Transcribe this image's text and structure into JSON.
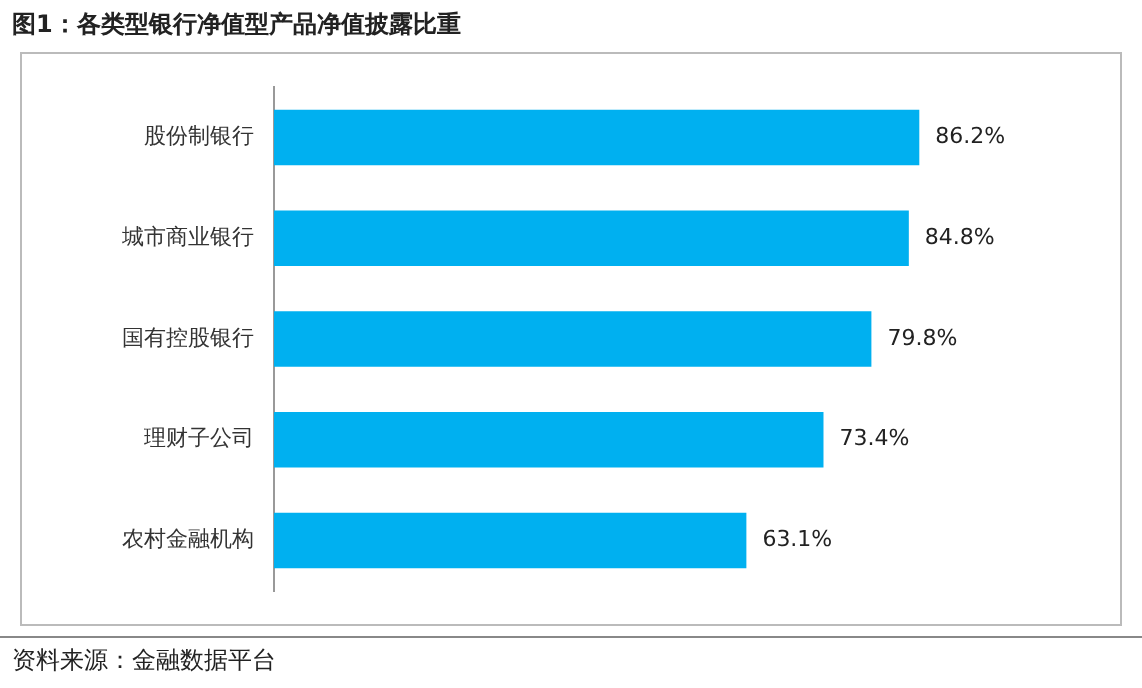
{
  "chart_data": {
    "type": "bar",
    "title": "图1：各类型银行净值型产品净值披露比重",
    "orientation": "horizontal",
    "categories": [
      "股份制银行",
      "城市商业银行",
      "国有控股银行",
      "理财子公司",
      "农村金融机构"
    ],
    "values": [
      86.2,
      84.8,
      79.8,
      73.4,
      63.1
    ],
    "value_labels": [
      "86.2%",
      "84.8%",
      "79.8%",
      "73.4%",
      "63.1%"
    ],
    "color": "#00b0f0",
    "legend": false,
    "tick_labels": "y",
    "annotations": [
      "资料来源：金融数据平台"
    ]
  }
}
